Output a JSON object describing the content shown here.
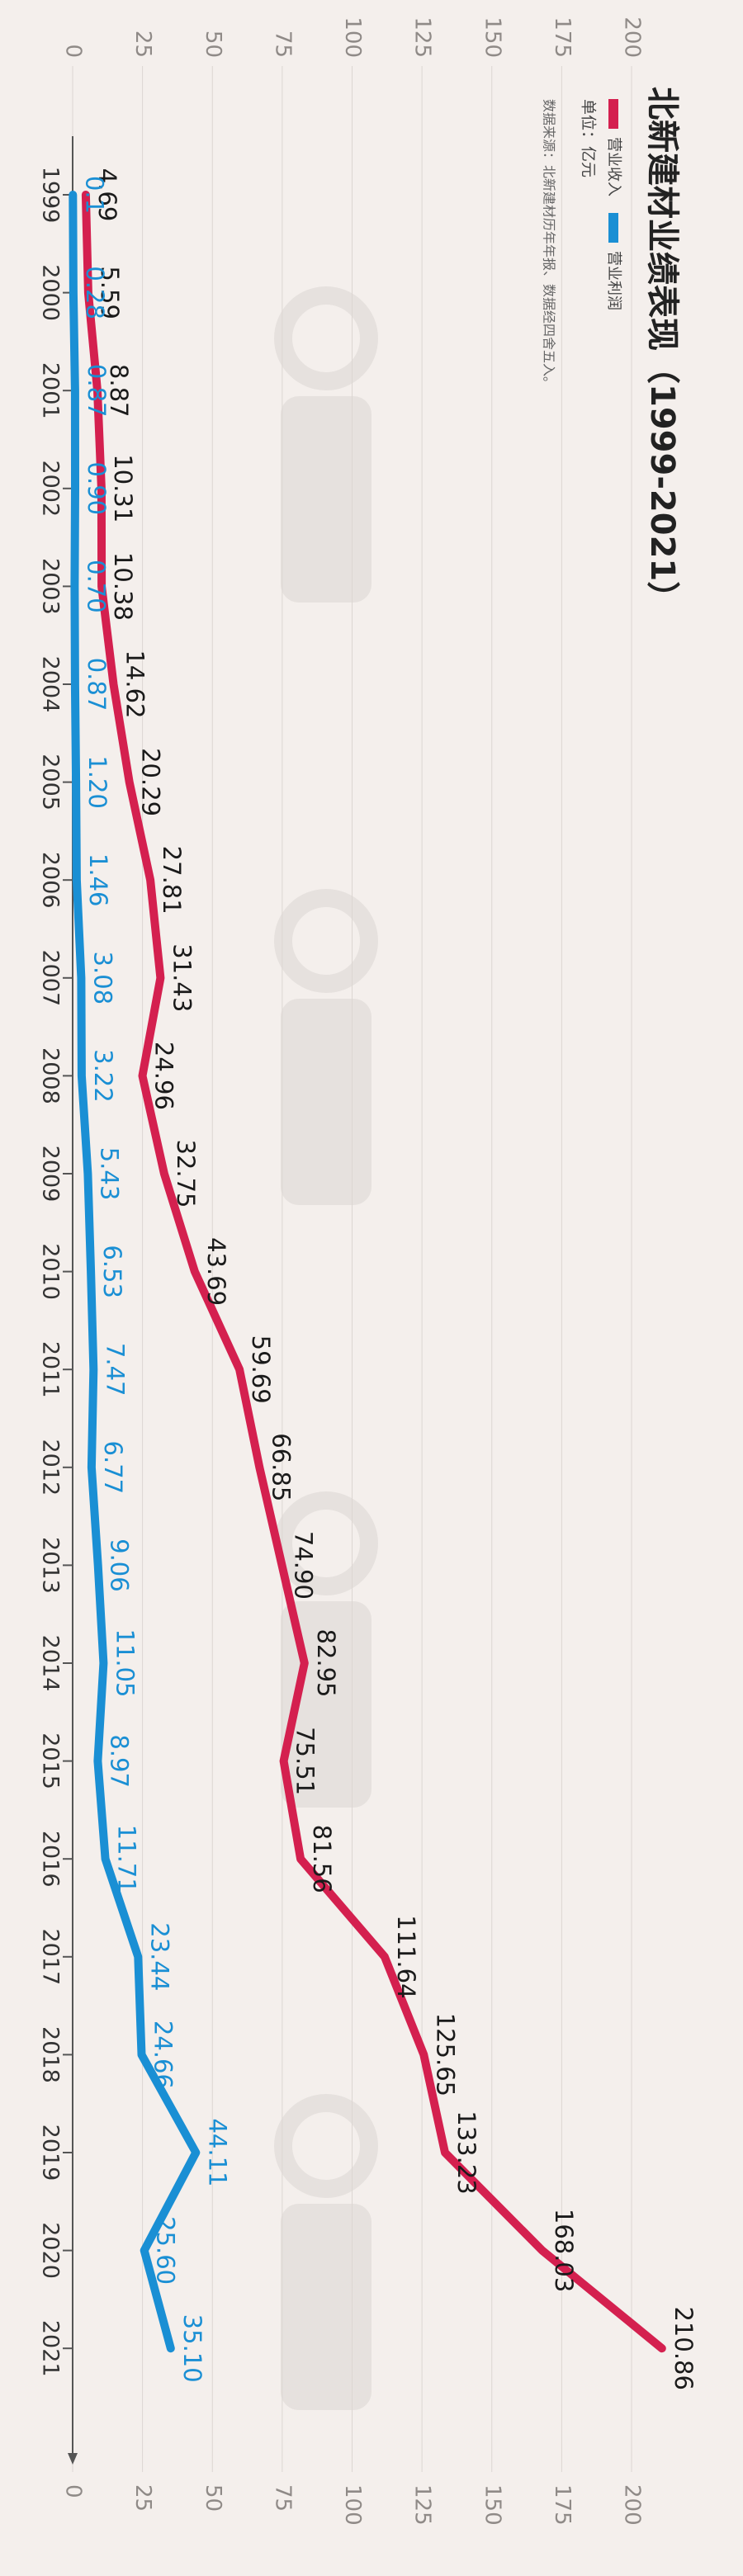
{
  "title": "北新建材业绩表现（1999-2021）",
  "unit_label": "单位：亿元",
  "source_label": "数据来源：北新建材历年年报、数据经四舍五入。",
  "colors": {
    "background": "#f4efec",
    "revenue": "#d4204f",
    "profit": "#1a8fd4",
    "axis": "#555555",
    "grid": "#dcd6d2",
    "watermark": "#e6e1de"
  },
  "chart_data": {
    "type": "line",
    "orientation": "rotated-90-clockwise",
    "categories": [
      "1999",
      "2000",
      "2001",
      "2002",
      "2003",
      "2004",
      "2005",
      "2006",
      "2007",
      "2008",
      "2009",
      "2010",
      "2011",
      "2012",
      "2013",
      "2014",
      "2015",
      "2016",
      "2017",
      "2018",
      "2019",
      "2020",
      "2021"
    ],
    "series": [
      {
        "name": "营业收入",
        "color": "#d4204f",
        "values": [
          4.69,
          5.59,
          8.87,
          10.31,
          10.38,
          14.62,
          20.29,
          27.81,
          31.43,
          24.96,
          32.75,
          43.69,
          59.69,
          66.85,
          74.9,
          82.95,
          75.51,
          81.56,
          111.64,
          125.65,
          133.23,
          168.03,
          210.86
        ],
        "labels": [
          "4.69",
          "5.59",
          "8.87",
          "10.31",
          "10.38",
          "14.62",
          "20.29",
          "27.81",
          "31.43",
          "24.96",
          "32.75",
          "43.69",
          "59.69",
          "66.85",
          "74.90",
          "82.95",
          "75.51",
          "81.56",
          "111.64",
          "125.65",
          "133.23",
          "168.03",
          "210.86"
        ]
      },
      {
        "name": "营业利润",
        "color": "#1a8fd4",
        "values": [
          0.1,
          0.28,
          0.87,
          0.9,
          0.7,
          0.87,
          1.2,
          1.46,
          3.08,
          3.22,
          5.43,
          6.53,
          7.47,
          6.77,
          9.06,
          11.05,
          8.97,
          11.71,
          23.44,
          24.66,
          44.11,
          25.6,
          35.1
        ],
        "labels": [
          "0.1",
          "0.28",
          "0.87",
          "0.90",
          "0.70",
          "0.87",
          "1.20",
          "1.46",
          "3.08",
          "3.22",
          "5.43",
          "6.53",
          "7.47",
          "6.77",
          "9.06",
          "11.05",
          "8.97",
          "11.71",
          "23.44",
          "24.66",
          "44.11",
          "25.60",
          "35.10"
        ]
      }
    ],
    "ylim": [
      0,
      200
    ],
    "yticks": [
      "0",
      "25",
      "50",
      "75",
      "100",
      "125",
      "150",
      "175",
      "200"
    ],
    "grid": true,
    "legend_position": "top-right"
  }
}
